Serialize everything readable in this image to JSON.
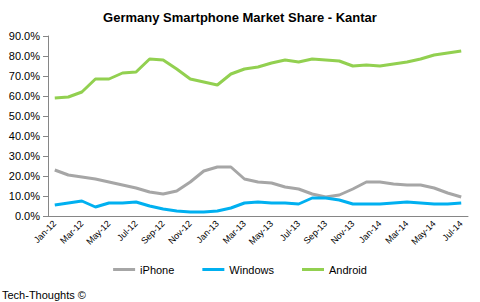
{
  "chart_data": {
    "type": "line",
    "title": "Germany Smartphone Market Share - Kantar",
    "annotations": [
      "Tech-Thoughts ©"
    ],
    "categories": [
      "Jan-12",
      null,
      "Mar-12",
      null,
      "May-12",
      null,
      "Jul-12",
      null,
      "Sep-12",
      null,
      "Nov-12",
      null,
      "Jan-13",
      null,
      "Mar-13",
      null,
      "May-13",
      null,
      "Jul-13",
      null,
      "Sep-13",
      null,
      "Nov-13",
      null,
      "Jan-14",
      null,
      "Mar-14",
      null,
      "May-14",
      null,
      "Jul-14"
    ],
    "series": [
      {
        "name": "iPhone",
        "color": "#a6a6a6",
        "values": [
          23,
          20.5,
          19.5,
          18.5,
          17,
          15.5,
          14,
          12,
          11,
          12.5,
          17,
          22.5,
          24.5,
          24.5,
          18.5,
          17,
          16.5,
          14.5,
          13.5,
          11,
          9.5,
          10.5,
          13.5,
          17,
          17,
          16,
          15.5,
          15.5,
          14,
          11.5,
          9.5
        ]
      },
      {
        "name": "Windows",
        "color": "#00b0f0",
        "values": [
          5.5,
          6.5,
          7.5,
          4.5,
          6.5,
          6.5,
          7,
          5,
          3.5,
          2.5,
          2,
          2,
          2.5,
          4,
          6.5,
          7,
          6.5,
          6.5,
          6,
          9,
          9,
          8,
          6,
          6,
          6,
          6.5,
          7,
          6.5,
          6,
          6,
          6.5
        ]
      },
      {
        "name": "Android",
        "color": "#92d050",
        "values": [
          59,
          59.5,
          62,
          68.5,
          68.5,
          71.5,
          72,
          78.5,
          78,
          73.5,
          68.5,
          67,
          65.5,
          71,
          73.5,
          74.5,
          76.5,
          78,
          77,
          78.5,
          78,
          77.5,
          75,
          75.5,
          75,
          76,
          77,
          78.5,
          80.5,
          81.5,
          82.5
        ]
      }
    ],
    "ylim": [
      0,
      90
    ],
    "yticks": [
      {
        "value": 0,
        "label": "0.0%"
      },
      {
        "value": 10,
        "label": "10.0%"
      },
      {
        "value": 20,
        "label": "20.0%"
      },
      {
        "value": 30,
        "label": "30.0%"
      },
      {
        "value": 40,
        "label": "40.0%"
      },
      {
        "value": 50,
        "label": "50.0%"
      },
      {
        "value": 60,
        "label": "60.0%"
      },
      {
        "value": 70,
        "label": "70.0%"
      },
      {
        "value": 80,
        "label": "80.0%"
      },
      {
        "value": 90,
        "label": "90.0%"
      }
    ],
    "grid": false,
    "legend": "bottom"
  }
}
